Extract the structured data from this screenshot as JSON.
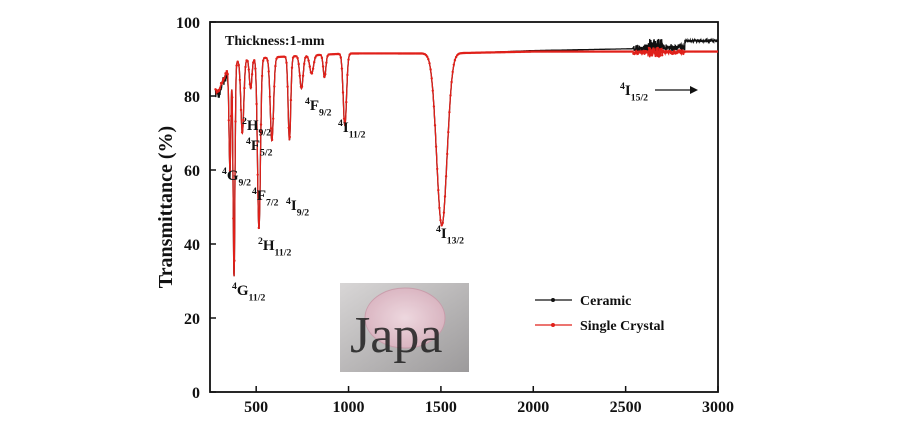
{
  "chart_data": {
    "type": "line",
    "xlabel": "",
    "ylabel": "Transmittance (%)",
    "xlim": [
      250,
      3000
    ],
    "ylim": [
      0,
      100
    ],
    "x_ticks": [
      500,
      1000,
      1500,
      2000,
      2500,
      3000
    ],
    "y_ticks": [
      0,
      20,
      40,
      60,
      80,
      100
    ],
    "grid": false,
    "legend_position": "right",
    "inset_note": "Thickness:1-mm",
    "series": [
      {
        "name": "Ceramic",
        "color": "#111111",
        "marker": "dot"
      },
      {
        "name": "Single Crystal",
        "color": "#e0201a",
        "marker": "dot"
      }
    ],
    "baseline_points": [
      [
        300,
        82
      ],
      [
        320,
        85
      ],
      [
        360,
        89
      ],
      [
        450,
        90
      ],
      [
        600,
        90.5
      ],
      [
        800,
        91
      ],
      [
        1000,
        91.5
      ],
      [
        1500,
        91.5
      ],
      [
        2000,
        92
      ],
      [
        2500,
        92
      ],
      [
        3000,
        92
      ]
    ],
    "absorption_bands": [
      {
        "x": 358,
        "min": 60,
        "width": 5
      },
      {
        "x": 380,
        "min": 31,
        "width": 5
      },
      {
        "x": 425,
        "min": 70,
        "width": 8
      },
      {
        "x": 470,
        "min": 82,
        "width": 7
      },
      {
        "x": 515,
        "min": 44,
        "width": 8
      },
      {
        "x": 585,
        "min": 68,
        "width": 9
      },
      {
        "x": 680,
        "min": 68,
        "width": 7
      },
      {
        "x": 745,
        "min": 82,
        "width": 9
      },
      {
        "x": 800,
        "min": 86,
        "width": 10
      },
      {
        "x": 870,
        "min": 85,
        "width": 7
      },
      {
        "x": 980,
        "min": 72,
        "width": 9
      },
      {
        "x": 1505,
        "min": 45,
        "width": 28
      }
    ],
    "annotations": [
      {
        "sup": "4",
        "base": "G",
        "sub": "11/2"
      },
      {
        "sup": "2",
        "base": "H",
        "sub": "11/2"
      },
      {
        "sup": "4",
        "base": "G",
        "sub": "9/2"
      },
      {
        "sup": "4",
        "base": "F",
        "sub": "7/2"
      },
      {
        "sup": "4",
        "base": "I",
        "sub": "9/2"
      },
      {
        "sup": "2",
        "base": "H",
        "sub": "9/2"
      },
      {
        "sup": "4",
        "base": "F",
        "sub": "5/2"
      },
      {
        "sup": "4",
        "base": "F",
        "sub": "9/2"
      },
      {
        "sup": "4",
        "base": "I",
        "sub": "11/2"
      },
      {
        "sup": "4",
        "base": "I",
        "sub": "13/2"
      },
      {
        "sup": "4",
        "base": "I",
        "sub": "15/2"
      }
    ],
    "inset_photo_text": "Japa"
  }
}
